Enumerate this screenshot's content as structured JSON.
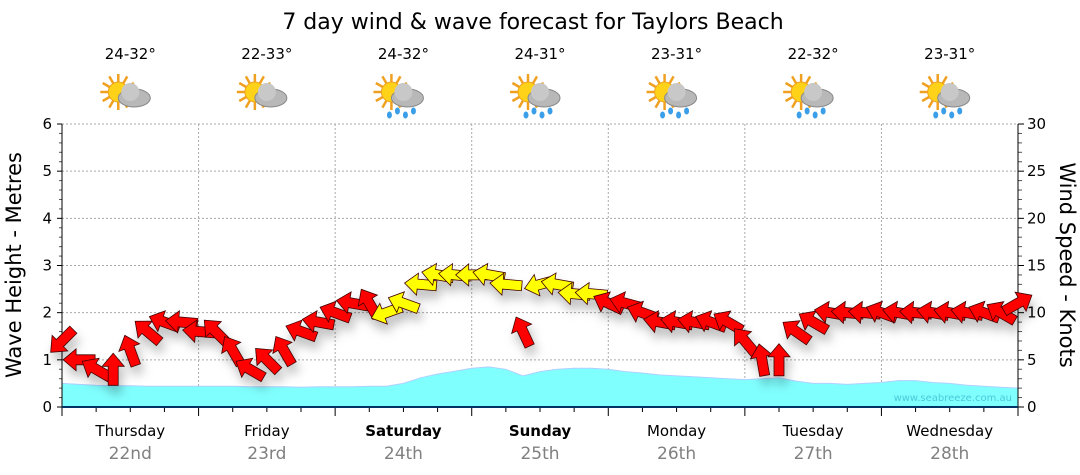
{
  "chart_data": {
    "type": "line",
    "title": "7 day wind & wave forecast for Taylors Beach",
    "ylabel_left": "Wave Height - Metres",
    "ylabel_right": "Wind Speed - Knots",
    "ylim_left": [
      0,
      6
    ],
    "ylim_right": [
      0,
      30
    ],
    "yticks_left": [
      "0",
      "1",
      "2",
      "3",
      "4",
      "5",
      "6"
    ],
    "yticks_right": [
      "0",
      "5",
      "10",
      "15",
      "20",
      "25",
      "30"
    ],
    "grid": true,
    "watermark": "www.seabreeze.com.au",
    "days": [
      {
        "day": "Thursday",
        "date": "22nd",
        "temp": "24-32°",
        "icon": "sun-cloud-icon",
        "bold": false
      },
      {
        "day": "Friday",
        "date": "23rd",
        "temp": "22-33°",
        "icon": "sun-cloud-icon",
        "bold": false
      },
      {
        "day": "Saturday",
        "date": "24th",
        "temp": "24-32°",
        "icon": "sun-cloud-rain-icon",
        "bold": true
      },
      {
        "day": "Sunday",
        "date": "25th",
        "temp": "24-31°",
        "icon": "sun-cloud-rain-icon",
        "bold": true
      },
      {
        "day": "Monday",
        "date": "26th",
        "temp": "23-31°",
        "icon": "sun-cloud-rain-icon",
        "bold": false
      },
      {
        "day": "Tuesday",
        "date": "27th",
        "temp": "22-32°",
        "icon": "sun-cloud-rain-icon",
        "bold": false
      },
      {
        "day": "Wednesday",
        "date": "28th",
        "temp": "23-31°",
        "icon": "sun-cloud-rain-icon",
        "bold": false
      }
    ],
    "interval_hours": 3,
    "wave_height_m": [
      0.5,
      0.48,
      0.46,
      0.45,
      0.45,
      0.44,
      0.44,
      0.44,
      0.44,
      0.44,
      0.44,
      0.43,
      0.43,
      0.43,
      0.42,
      0.43,
      0.43,
      0.43,
      0.44,
      0.44,
      0.5,
      0.62,
      0.7,
      0.76,
      0.82,
      0.85,
      0.8,
      0.66,
      0.75,
      0.8,
      0.82,
      0.82,
      0.8,
      0.75,
      0.72,
      0.68,
      0.66,
      0.64,
      0.62,
      0.6,
      0.58,
      0.6,
      0.62,
      0.55,
      0.5,
      0.5,
      0.48,
      0.5,
      0.52,
      0.56,
      0.56,
      0.52,
      0.5,
      0.46,
      0.44,
      0.42,
      0.4
    ],
    "wind_speed_kn": [
      7,
      5,
      4,
      4,
      6,
      8,
      9,
      9,
      8,
      8,
      6,
      4,
      5,
      6,
      8,
      9,
      10,
      11,
      11,
      10,
      11,
      13,
      14,
      14,
      14,
      14,
      13,
      8,
      13,
      13,
      12,
      12,
      11,
      11,
      10,
      9,
      9,
      9,
      9,
      9,
      7,
      5,
      5,
      8,
      9,
      10,
      10,
      10,
      10,
      10,
      10,
      10,
      10,
      10,
      10,
      10,
      11
    ],
    "wind_direction_from_deg": [
      45,
      90,
      120,
      180,
      160,
      130,
      110,
      95,
      95,
      135,
      150,
      120,
      135,
      150,
      110,
      100,
      110,
      100,
      150,
      70,
      110,
      95,
      100,
      95,
      90,
      100,
      95,
      155,
      75,
      100,
      95,
      95,
      115,
      105,
      110,
      100,
      100,
      100,
      110,
      120,
      140,
      170,
      180,
      125,
      120,
      100,
      95,
      95,
      110,
      100,
      95,
      100,
      100,
      100,
      110,
      120,
      240
    ],
    "wind_colors": [
      "#ff0000",
      "#ff0000",
      "#ff0000",
      "#ff0000",
      "#ff0000",
      "#ff0000",
      "#ff0000",
      "#ff0000",
      "#ff0000",
      "#ff0000",
      "#ff0000",
      "#ff0000",
      "#ff0000",
      "#ff0000",
      "#ff0000",
      "#ff0000",
      "#ff0000",
      "#ff0000",
      "#ff0000",
      "#ffff00",
      "#ffff00",
      "#ffff00",
      "#ffff00",
      "#ffff00",
      "#ffff00",
      "#ffff00",
      "#ffff00",
      "#ff0000",
      "#ffff00",
      "#ffff00",
      "#ffff00",
      "#ffff00",
      "#ff0000",
      "#ff0000",
      "#ff0000",
      "#ff0000",
      "#ff0000",
      "#ff0000",
      "#ff0000",
      "#ff0000",
      "#ff0000",
      "#ff0000",
      "#ff0000",
      "#ff0000",
      "#ff0000",
      "#ff0000",
      "#ff0000",
      "#ff0000",
      "#ff0000",
      "#ff0000",
      "#ff0000",
      "#ff0000",
      "#ff0000",
      "#ff0000",
      "#ff0000",
      "#ff0000",
      "#ff0000"
    ],
    "wave_color": "#80ffff"
  }
}
